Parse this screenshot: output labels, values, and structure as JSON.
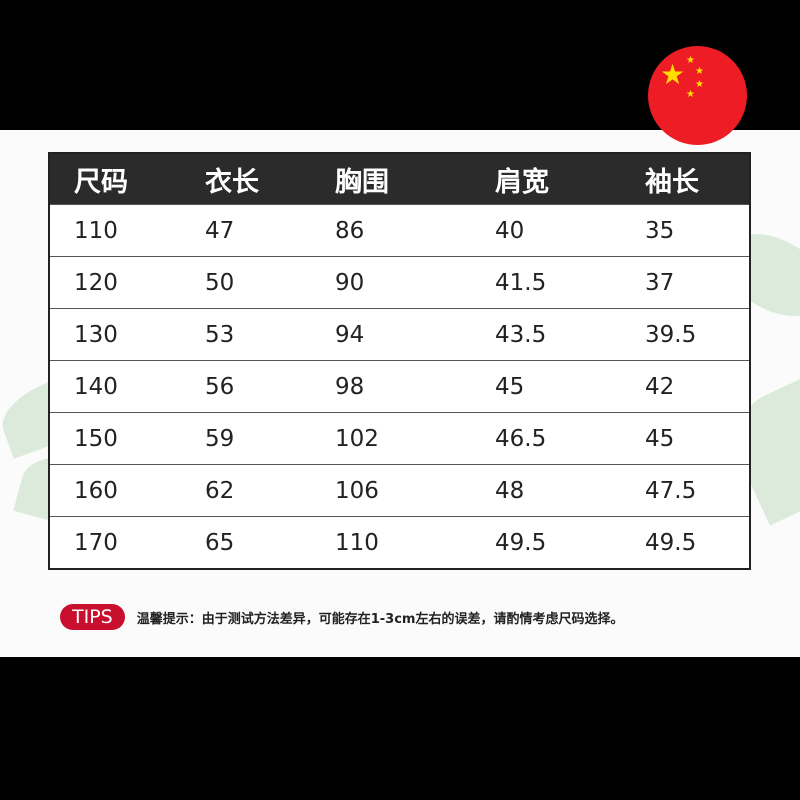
{
  "table": {
    "headers": [
      "尺码",
      "衣长",
      "胸围",
      "肩宽",
      "袖长"
    ],
    "rows": [
      [
        "110",
        "47",
        "86",
        "40",
        "35"
      ],
      [
        "120",
        "50",
        "90",
        "41.5",
        "37"
      ],
      [
        "130",
        "53",
        "94",
        "43.5",
        "39.5"
      ],
      [
        "140",
        "56",
        "98",
        "45",
        "42"
      ],
      [
        "150",
        "59",
        "102",
        "46.5",
        "45"
      ],
      [
        "160",
        "62",
        "106",
        "48",
        "47.5"
      ],
      [
        "170",
        "65",
        "110",
        "49.5",
        "49.5"
      ]
    ]
  },
  "tips": {
    "badge": "TIPS",
    "text": "温馨提示：由于测试方法差异，可能存在1-3cm左右的误差，请酌情考虑尺码选择。"
  },
  "colors": {
    "header_bg": "#2b2b2b",
    "badge": "#c8102e",
    "flag_red": "#ee1c25",
    "flag_star": "#ffde00"
  },
  "icons": {
    "flag": "china-flag-icon"
  }
}
